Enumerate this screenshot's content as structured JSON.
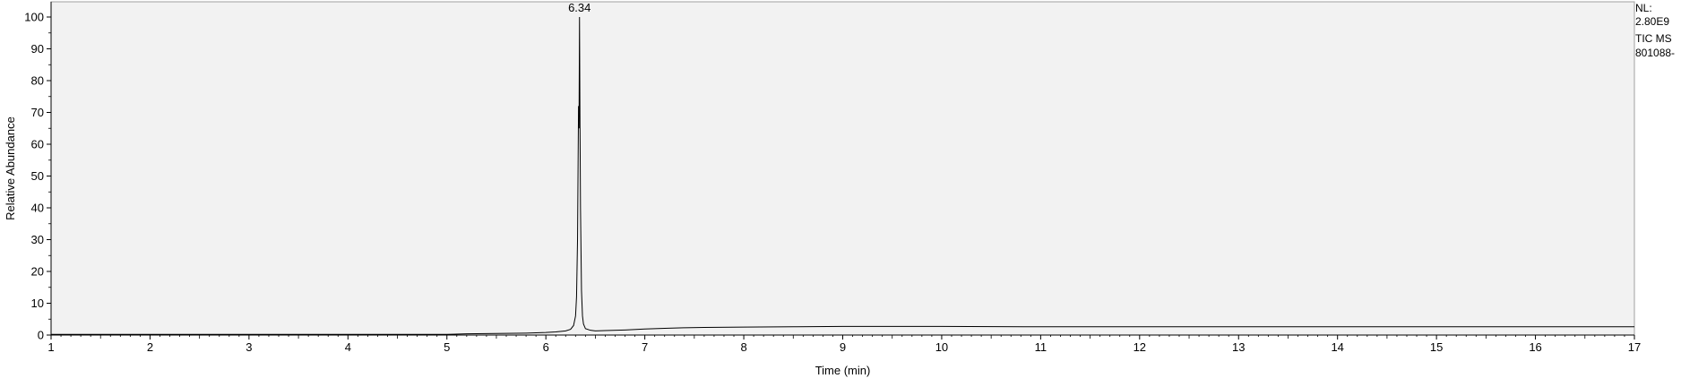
{
  "chart_data": {
    "type": "line",
    "title": "",
    "xlabel": "Time (min)",
    "ylabel": "Relative Abundance",
    "xlim": [
      1,
      17
    ],
    "ylim": [
      0,
      100
    ],
    "x_ticks": [
      1,
      2,
      3,
      4,
      5,
      6,
      7,
      8,
      9,
      10,
      11,
      12,
      13,
      14,
      15,
      16,
      17
    ],
    "y_ticks": [
      0,
      10,
      20,
      30,
      40,
      50,
      60,
      70,
      80,
      90,
      100
    ],
    "x_tick_labels": [
      "1",
      "2",
      "3",
      "4",
      "5",
      "6",
      "7",
      "8",
      "9",
      "10",
      "11",
      "12",
      "13",
      "14",
      "15",
      "16",
      "17"
    ],
    "y_tick_labels": [
      "0",
      "10",
      "20",
      "30",
      "40",
      "50",
      "60",
      "70",
      "80",
      "90",
      "100"
    ],
    "grid": false,
    "series": [
      {
        "x": [
          1.0,
          2.0,
          3.0,
          4.0,
          5.0,
          5.2,
          5.5,
          5.8,
          6.0,
          6.1,
          6.2,
          6.25,
          6.28,
          6.3,
          6.31,
          6.32,
          6.33,
          6.335,
          6.34,
          6.345,
          6.35,
          6.36,
          6.37,
          6.38,
          6.4,
          6.45,
          6.5,
          6.6,
          6.8,
          7.0,
          7.2,
          7.4,
          7.6,
          8.0,
          8.5,
          9.0,
          9.5,
          10.0,
          11.0,
          12.0,
          13.0,
          14.0,
          15.0,
          16.0,
          17.0
        ],
        "y": [
          0.2,
          0.2,
          0.2,
          0.2,
          0.2,
          0.4,
          0.5,
          0.6,
          0.8,
          1.0,
          1.3,
          1.8,
          3.0,
          6.0,
          12.0,
          30.0,
          72.0,
          65.0,
          100.0,
          66.0,
          40.0,
          14.0,
          6.0,
          3.5,
          2.0,
          1.5,
          1.3,
          1.4,
          1.6,
          1.9,
          2.1,
          2.3,
          2.4,
          2.5,
          2.6,
          2.7,
          2.7,
          2.7,
          2.6,
          2.6,
          2.6,
          2.6,
          2.6,
          2.6,
          2.6
        ]
      }
    ],
    "annotations": [
      {
        "x": 6.34,
        "y": 100,
        "text": "6.34"
      }
    ]
  },
  "info": {
    "nl_label": "NL:",
    "nl_value": "2.80E9",
    "scan_label": "TIC  MS",
    "file_label": "801088-"
  },
  "colors": {
    "plot_background": "#f2f2f2",
    "trace": "#000000",
    "axis": "#000000"
  }
}
